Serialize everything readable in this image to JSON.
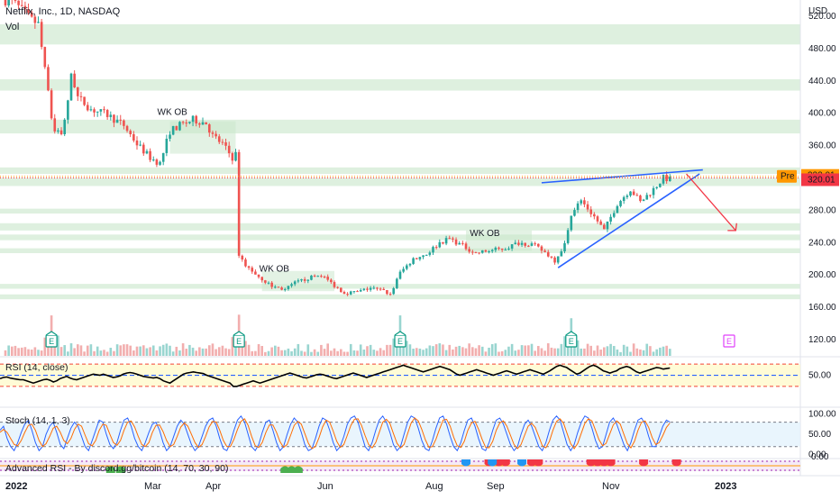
{
  "header": {
    "title": "Netflix, Inc., 1D, NASDAQ",
    "volume_label": "Vol",
    "currency": "USD"
  },
  "chart_data": [
    {
      "type": "candlestick",
      "symbol": "Netflix, Inc.",
      "interval": "1D",
      "exchange": "NASDAQ",
      "ylim": [
        100,
        540
      ],
      "y_ticks": [
        {
          "v": 520,
          "label": "520.00"
        },
        {
          "v": 480,
          "label": "480.00"
        },
        {
          "v": 440,
          "label": "440.00"
        },
        {
          "v": 400,
          "label": "400.00"
        },
        {
          "v": 360,
          "label": "360.00"
        },
        {
          "v": 320,
          "label": "320.00"
        },
        {
          "v": 280,
          "label": "280.00"
        },
        {
          "v": 240,
          "label": "240.00"
        },
        {
          "v": 200,
          "label": "200.00"
        },
        {
          "v": 160,
          "label": "160.00"
        },
        {
          "v": 120,
          "label": "120.00"
        }
      ],
      "x_ticks": [
        "2022",
        "Mar",
        "Apr",
        "Jun",
        "Aug",
        "Sep",
        "Nov",
        "2023"
      ],
      "price_path": [
        {
          "d": 0,
          "p": 540
        },
        {
          "d": 3,
          "p": 535
        },
        {
          "d": 8,
          "p": 515
        },
        {
          "d": 10,
          "p": 510
        },
        {
          "d": 14,
          "p": 395
        },
        {
          "d": 15,
          "p": 380
        },
        {
          "d": 17,
          "p": 375
        },
        {
          "d": 19,
          "p": 412
        },
        {
          "d": 20,
          "p": 450
        },
        {
          "d": 22,
          "p": 420
        },
        {
          "d": 26,
          "p": 405
        },
        {
          "d": 31,
          "p": 398
        },
        {
          "d": 36,
          "p": 385
        },
        {
          "d": 40,
          "p": 362
        },
        {
          "d": 44,
          "p": 345
        },
        {
          "d": 47,
          "p": 338
        },
        {
          "d": 50,
          "p": 378
        },
        {
          "d": 53,
          "p": 385
        },
        {
          "d": 57,
          "p": 392
        },
        {
          "d": 61,
          "p": 388
        },
        {
          "d": 63,
          "p": 372
        },
        {
          "d": 66,
          "p": 362
        },
        {
          "d": 69,
          "p": 345
        },
        {
          "d": 70,
          "p": 348
        },
        {
          "d": 71,
          "p": 226
        },
        {
          "d": 73,
          "p": 212
        },
        {
          "d": 77,
          "p": 198
        },
        {
          "d": 81,
          "p": 186
        },
        {
          "d": 85,
          "p": 182
        },
        {
          "d": 88,
          "p": 190
        },
        {
          "d": 92,
          "p": 196
        },
        {
          "d": 96,
          "p": 200
        },
        {
          "d": 100,
          "p": 187
        },
        {
          "d": 103,
          "p": 178
        },
        {
          "d": 107,
          "p": 179
        },
        {
          "d": 111,
          "p": 184
        },
        {
          "d": 115,
          "p": 180
        },
        {
          "d": 117,
          "p": 176
        },
        {
          "d": 120,
          "p": 203
        },
        {
          "d": 124,
          "p": 220
        },
        {
          "d": 128,
          "p": 226
        },
        {
          "d": 132,
          "p": 240
        },
        {
          "d": 135,
          "p": 245
        },
        {
          "d": 139,
          "p": 236
        },
        {
          "d": 143,
          "p": 227
        },
        {
          "d": 147,
          "p": 230
        },
        {
          "d": 152,
          "p": 233
        },
        {
          "d": 156,
          "p": 240
        },
        {
          "d": 160,
          "p": 238
        },
        {
          "d": 164,
          "p": 228
        },
        {
          "d": 167,
          "p": 218
        },
        {
          "d": 170,
          "p": 238
        },
        {
          "d": 172,
          "p": 276
        },
        {
          "d": 175,
          "p": 292
        },
        {
          "d": 179,
          "p": 272
        },
        {
          "d": 182,
          "p": 255
        },
        {
          "d": 186,
          "p": 288
        },
        {
          "d": 190,
          "p": 306
        },
        {
          "d": 193,
          "p": 290
        },
        {
          "d": 197,
          "p": 306
        },
        {
          "d": 200,
          "p": 320
        },
        {
          "d": 202,
          "p": 318
        }
      ],
      "volume_note": "volume spikes at earnings dates",
      "volume_spikes_at": [
        14,
        71,
        120,
        172
      ],
      "earnings_markers": [
        {
          "label": "E",
          "d": 14,
          "upcoming": false
        },
        {
          "label": "E",
          "d": 71,
          "upcoming": false
        },
        {
          "label": "E",
          "d": 120,
          "upcoming": false
        },
        {
          "label": "E",
          "d": 172,
          "upcoming": false
        },
        {
          "label": "E",
          "d": 220,
          "upcoming": true
        }
      ],
      "annotations": [
        {
          "text": "WK OB",
          "d": 50,
          "p": 398
        },
        {
          "text": "WK OB",
          "d": 81,
          "p": 204
        },
        {
          "text": "WK OB",
          "d": 145,
          "p": 248
        }
      ],
      "order_block_zones": [
        [
          485,
          510
        ],
        [
          428,
          442
        ],
        [
          375,
          392
        ],
        [
          325,
          333
        ],
        [
          310,
          320
        ],
        [
          276,
          282
        ],
        [
          255,
          264
        ],
        [
          243,
          250
        ],
        [
          227,
          233
        ],
        [
          183,
          189
        ],
        [
          170,
          176
        ]
      ],
      "wedge_upper": [
        {
          "d": 163,
          "p": 314
        },
        {
          "d": 212,
          "p": 330
        }
      ],
      "wedge_lower": [
        {
          "d": 168,
          "p": 209
        },
        {
          "d": 211,
          "p": 325
        }
      ],
      "projection_arrow": [
        {
          "d": 207,
          "p": 325
        },
        {
          "d": 222,
          "p": 255
        }
      ],
      "price_labels": [
        {
          "text": "Pre",
          "color": "#ff9800"
        },
        {
          "text": "322.01",
          "value": 322.01,
          "color": "#ff9800"
        },
        {
          "text": "320.01",
          "value": 320.01,
          "color": "#f23645"
        }
      ]
    },
    {
      "type": "line",
      "title": "RSI (14, close)",
      "ylim": [
        25,
        80
      ],
      "y_ticks": [
        {
          "v": 50,
          "label": "50.00"
        }
      ],
      "bands": {
        "upper": 70,
        "middle": 50,
        "lower": 30
      },
      "values": [
        44,
        46,
        47,
        45,
        44,
        43,
        42,
        42,
        40,
        38,
        36,
        38,
        40,
        42,
        43,
        41,
        38,
        40,
        44,
        46,
        48,
        45,
        43,
        42,
        44,
        46,
        48,
        50,
        52,
        51,
        50,
        52,
        50,
        48,
        46,
        47,
        49,
        52,
        54,
        55,
        54,
        52,
        50,
        48,
        47,
        46,
        45,
        46,
        44,
        40,
        38,
        36,
        40,
        44,
        48,
        52,
        54,
        55,
        56,
        55,
        54,
        53,
        50,
        48,
        46,
        44,
        42,
        40,
        38,
        36,
        30,
        30,
        32,
        34,
        36,
        38,
        40,
        38,
        36,
        38,
        40,
        42,
        44,
        46,
        48,
        50,
        52,
        54,
        52,
        50,
        48,
        46,
        45,
        47,
        49,
        51,
        52,
        51,
        49,
        47,
        45,
        44,
        46,
        48,
        50,
        52,
        54,
        52,
        50,
        48,
        46,
        48,
        50,
        52,
        54,
        56,
        58,
        60,
        62,
        64,
        66,
        68,
        66,
        64,
        62,
        60,
        58,
        56,
        58,
        60,
        62,
        64,
        66,
        64,
        62,
        60,
        56,
        52,
        50,
        52,
        54,
        56,
        58,
        60,
        58,
        56,
        54,
        52,
        50,
        52,
        54,
        56,
        58,
        56,
        54,
        52,
        54,
        56,
        58,
        60,
        58,
        56,
        54,
        52,
        55,
        58,
        62,
        66,
        68,
        66,
        64,
        60,
        56,
        52,
        54,
        58,
        62,
        66,
        68,
        66,
        62,
        58,
        56,
        54,
        56,
        58,
        62,
        64,
        66,
        64,
        60,
        56,
        54,
        56,
        58,
        60,
        62,
        64,
        63,
        61,
        62,
        63
      ]
    },
    {
      "type": "line",
      "title": "Stoch (14, 1, 3)",
      "ylim": [
        -5,
        110
      ],
      "y_ticks": [
        {
          "v": 100,
          "label": "100.00"
        },
        {
          "v": 50,
          "label": "50.00"
        },
        {
          "v": 0,
          "label": "0.00"
        }
      ],
      "bands": {
        "upper": 80,
        "lower": 20
      },
      "series": [
        {
          "color": "#2962ff",
          "values": [
            60,
            70,
            40,
            20,
            10,
            30,
            55,
            75,
            85,
            60,
            30,
            10,
            20,
            50,
            70,
            80,
            55,
            25,
            15,
            40,
            65,
            80,
            70,
            45,
            20,
            10,
            35,
            60,
            85,
            80,
            50,
            25,
            15,
            30,
            60,
            85,
            90,
            70,
            40,
            20,
            10,
            30,
            55,
            75,
            80,
            60,
            30,
            10,
            20,
            45,
            70,
            85,
            75,
            50,
            25,
            10,
            20,
            45,
            70,
            85,
            90,
            70,
            40,
            15,
            10,
            30,
            60,
            85,
            95,
            80,
            50,
            20,
            10,
            25,
            55,
            80,
            85,
            60,
            30,
            10,
            20,
            50,
            75,
            90,
            80,
            55,
            25,
            10,
            15,
            40,
            70,
            90,
            85,
            60,
            30,
            10,
            20,
            45,
            75,
            90,
            95,
            80,
            50,
            20,
            10,
            30,
            60,
            85,
            95,
            80,
            55,
            25,
            10,
            20,
            50,
            80,
            95,
            90,
            65,
            35,
            15,
            10,
            35,
            65,
            90,
            95,
            75,
            45,
            20,
            10,
            30,
            60,
            85,
            90,
            70,
            40,
            15,
            10,
            30,
            60,
            85,
            90,
            75,
            50,
            25,
            10,
            20,
            50,
            75,
            85,
            70,
            45,
            20,
            10,
            30,
            60,
            85,
            95,
            85,
            55,
            25,
            10,
            25,
            55,
            80,
            95,
            90,
            65,
            35,
            15,
            20,
            50,
            80,
            90,
            75,
            50,
            25,
            10,
            30,
            60,
            85,
            90,
            75,
            45,
            20,
            20,
            45,
            70,
            85,
            80
          ]
        },
        {
          "color": "#ff6d00",
          "values": [
            55,
            62,
            55,
            40,
            25,
            22,
            35,
            55,
            72,
            75,
            60,
            35,
            20,
            27,
            45,
            65,
            70,
            55,
            35,
            27,
            40,
            62,
            75,
            70,
            48,
            27,
            22,
            35,
            60,
            75,
            72,
            50,
            30,
            23,
            35,
            60,
            80,
            83,
            68,
            45,
            25,
            20,
            30,
            55,
            72,
            73,
            57,
            35,
            20,
            25,
            45,
            68,
            78,
            70,
            50,
            30,
            18,
            25,
            45,
            68,
            82,
            80,
            60,
            35,
            20,
            20,
            38,
            62,
            82,
            88,
            72,
            45,
            22,
            18,
            30,
            55,
            73,
            73,
            55,
            32,
            18,
            25,
            48,
            72,
            82,
            75,
            52,
            28,
            15,
            20,
            42,
            68,
            85,
            80,
            58,
            33,
            18,
            25,
            48,
            72,
            87,
            88,
            72,
            47,
            25,
            17,
            30,
            55,
            80,
            87,
            77,
            52,
            28,
            17,
            25,
            52,
            78,
            90,
            83,
            62,
            37,
            18,
            20,
            38,
            63,
            85,
            87,
            70,
            43,
            22,
            18,
            33,
            60,
            78,
            82,
            63,
            38,
            18,
            17,
            33,
            60,
            78,
            83,
            70,
            48,
            25,
            15,
            25,
            48,
            70,
            77,
            67,
            45,
            22,
            17,
            33,
            60,
            82,
            88,
            77,
            52,
            27,
            15,
            28,
            53,
            77,
            88,
            83,
            60,
            37,
            22,
            28,
            50,
            73,
            83,
            75,
            50,
            27,
            17,
            33,
            60,
            80,
            83,
            67,
            42,
            25,
            30,
            47,
            67,
            78
          ]
        }
      ]
    },
    {
      "type": "indicator",
      "title": "Advanced RSI - By discord.gg/bitcoin (14, 70, 30, 90)",
      "y_ticks": [
        {
          "label": "0.00"
        }
      ],
      "signals_green": [
        32,
        35,
        85,
        87,
        89
      ],
      "signals_red": [
        147,
        150,
        152,
        160,
        162,
        178,
        180,
        182,
        184,
        194,
        204
      ],
      "signals_blue": [
        140,
        148,
        157
      ]
    }
  ]
}
